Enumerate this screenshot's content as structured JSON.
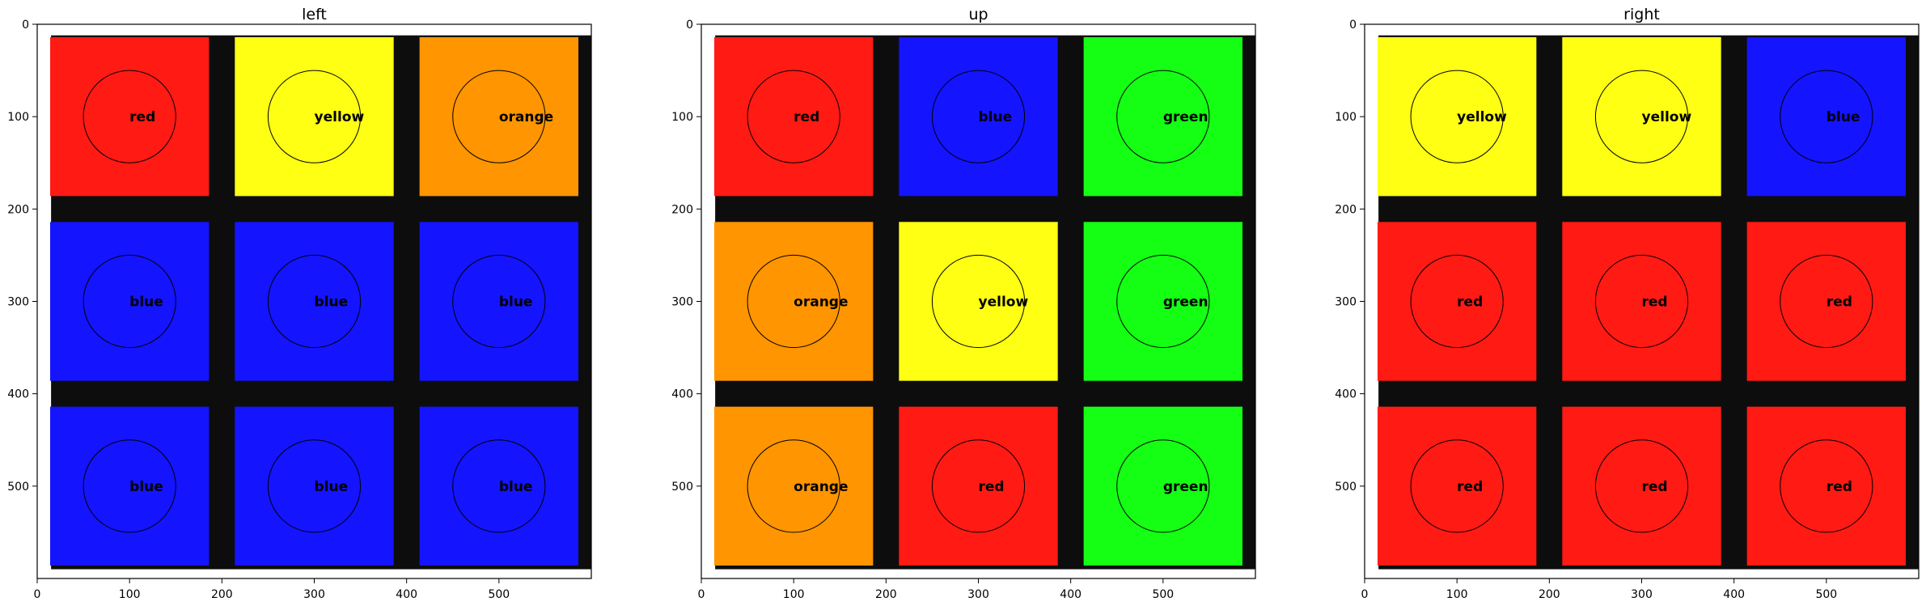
{
  "figure": {
    "background": "#ffffff"
  },
  "color_map": {
    "red": "#ff1a14",
    "yellow": "#ffff14",
    "orange": "#ff9500",
    "blue": "#1414ff",
    "green": "#14ff14",
    "gap": "#0d0d0d"
  },
  "chart_data": [
    {
      "type": "image-grid",
      "title": "left",
      "xlim": [
        0,
        600
      ],
      "ylim": [
        600,
        0
      ],
      "xticks": [
        0,
        100,
        200,
        300,
        400,
        500
      ],
      "yticks": [
        0,
        100,
        200,
        300,
        400,
        500
      ],
      "sample_points": [
        [
          100,
          100
        ],
        [
          300,
          100
        ],
        [
          500,
          100
        ],
        [
          100,
          300
        ],
        [
          300,
          300
        ],
        [
          500,
          300
        ],
        [
          100,
          500
        ],
        [
          300,
          500
        ],
        [
          500,
          500
        ]
      ],
      "circle_radius": 50,
      "labels": [
        [
          "red",
          "yellow",
          "orange"
        ],
        [
          "blue",
          "blue",
          "blue"
        ],
        [
          "blue",
          "blue",
          "blue"
        ]
      ]
    },
    {
      "type": "image-grid",
      "title": "up",
      "xlim": [
        0,
        600
      ],
      "ylim": [
        600,
        0
      ],
      "xticks": [
        0,
        100,
        200,
        300,
        400,
        500
      ],
      "yticks": [
        0,
        100,
        200,
        300,
        400,
        500
      ],
      "sample_points": [
        [
          100,
          100
        ],
        [
          300,
          100
        ],
        [
          500,
          100
        ],
        [
          100,
          300
        ],
        [
          300,
          300
        ],
        [
          500,
          300
        ],
        [
          100,
          500
        ],
        [
          300,
          500
        ],
        [
          500,
          500
        ]
      ],
      "circle_radius": 50,
      "labels": [
        [
          "red",
          "blue",
          "green"
        ],
        [
          "orange",
          "yellow",
          "green"
        ],
        [
          "orange",
          "red",
          "green"
        ]
      ]
    },
    {
      "type": "image-grid",
      "title": "right",
      "xlim": [
        0,
        600
      ],
      "ylim": [
        600,
        0
      ],
      "xticks": [
        0,
        100,
        200,
        300,
        400,
        500
      ],
      "yticks": [
        0,
        100,
        200,
        300,
        400,
        500
      ],
      "sample_points": [
        [
          100,
          100
        ],
        [
          300,
          100
        ],
        [
          500,
          100
        ],
        [
          100,
          300
        ],
        [
          300,
          300
        ],
        [
          500,
          300
        ],
        [
          100,
          500
        ],
        [
          300,
          500
        ],
        [
          500,
          500
        ]
      ],
      "circle_radius": 50,
      "labels": [
        [
          "yellow",
          "yellow",
          "blue"
        ],
        [
          "red",
          "red",
          "red"
        ],
        [
          "red",
          "red",
          "red"
        ]
      ]
    }
  ]
}
